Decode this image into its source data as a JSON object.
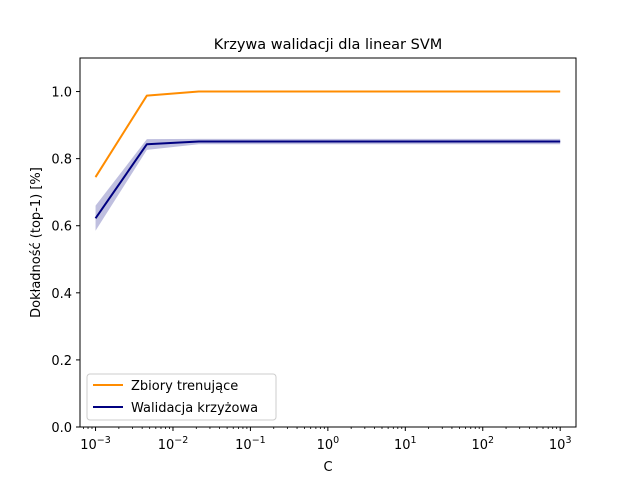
{
  "chart_data": {
    "type": "line",
    "title": "Krzywa walidacji dla linear SVM",
    "xlabel": "C",
    "ylabel": "Dokładność (top-1) [%]",
    "xscale": "log",
    "xlim": [
      0.00063,
      1600
    ],
    "ylim": [
      0.0,
      1.1
    ],
    "x": [
      0.001,
      0.0046,
      0.0215,
      0.1,
      0.464,
      2.15,
      10,
      46.4,
      215,
      1000
    ],
    "xticks": [
      {
        "value": 0.001,
        "base": "10",
        "exp": "−3"
      },
      {
        "value": 0.01,
        "base": "10",
        "exp": "−2"
      },
      {
        "value": 0.1,
        "base": "10",
        "exp": "−1"
      },
      {
        "value": 1,
        "base": "10",
        "exp": "0"
      },
      {
        "value": 10,
        "base": "10",
        "exp": "1"
      },
      {
        "value": 100,
        "base": "10",
        "exp": "2"
      },
      {
        "value": 1000,
        "base": "10",
        "exp": "3"
      }
    ],
    "yticks": [
      {
        "value": 0.0,
        "label": "0.0"
      },
      {
        "value": 0.2,
        "label": "0.2"
      },
      {
        "value": 0.4,
        "label": "0.4"
      },
      {
        "value": 0.6,
        "label": "0.6"
      },
      {
        "value": 0.8,
        "label": "0.8"
      },
      {
        "value": 1.0,
        "label": "1.0"
      }
    ],
    "series": [
      {
        "name": "Zbiory trenujące",
        "color": "#ff8c00",
        "values": [
          0.745,
          0.988,
          1.0,
          1.0,
          1.0,
          1.0,
          1.0,
          1.0,
          1.0,
          1.0
        ],
        "band_lower": [
          0.74,
          0.986,
          1.0,
          1.0,
          1.0,
          1.0,
          1.0,
          1.0,
          1.0,
          1.0
        ],
        "band_upper": [
          0.75,
          0.99,
          1.0,
          1.0,
          1.0,
          1.0,
          1.0,
          1.0,
          1.0,
          1.0
        ]
      },
      {
        "name": "Walidacja krzyżowa",
        "color": "#000080",
        "values": [
          0.622,
          0.843,
          0.851,
          0.851,
          0.851,
          0.851,
          0.851,
          0.851,
          0.851,
          0.851
        ],
        "band_lower": [
          0.585,
          0.826,
          0.843,
          0.843,
          0.843,
          0.843,
          0.843,
          0.843,
          0.843,
          0.843
        ],
        "band_upper": [
          0.66,
          0.858,
          0.859,
          0.859,
          0.859,
          0.859,
          0.859,
          0.859,
          0.859,
          0.859
        ]
      }
    ],
    "legend": "lower-left",
    "grid": false
  }
}
